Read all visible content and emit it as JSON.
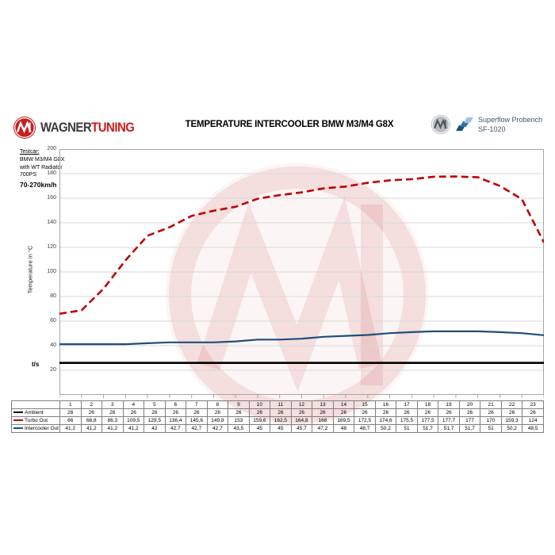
{
  "header": {
    "brand": {
      "wagner": "WAGNER",
      "tuning": "TUNING"
    },
    "title": "TEMPERATURE INTERCOOLER BMW M3/M4 G8X",
    "probench": {
      "line1": "Superflow Probench",
      "line2": "SF-1020"
    }
  },
  "annotation": {
    "testcar_label": "Testcar:",
    "lines": [
      "BMW M3/M4 G8X",
      "with WT Radiator",
      "700PS"
    ],
    "speed": "70-270km/h"
  },
  "chart_data": {
    "type": "line",
    "title": "TEMPERATURE INTERCOOLER BMW M3/M4 G8X",
    "xlabel": "t/s",
    "ylabel": "Temperature in °C",
    "ylim": [
      0,
      200
    ],
    "ytick_step": 20,
    "grid": true,
    "legend_position": "table-left",
    "categories": [
      1,
      2,
      3,
      4,
      5,
      6,
      7,
      8,
      9,
      10,
      11,
      12,
      13,
      14,
      15,
      16,
      17,
      18,
      19,
      20,
      21,
      22,
      23
    ],
    "series": [
      {
        "name": "Ambient",
        "color": "#000000",
        "style": "solid",
        "values": [
          26,
          26,
          26,
          26,
          26,
          26,
          26,
          26,
          26,
          26,
          26,
          26,
          26,
          26,
          26,
          26,
          26,
          26,
          26,
          26,
          26,
          26,
          26
        ]
      },
      {
        "name": "Turbo Out",
        "color": "#c00000",
        "style": "dashed",
        "values": [
          66,
          68.8,
          86.3,
          109.5,
          129.5,
          136.4,
          145.6,
          149.8,
          153,
          159.6,
          162.5,
          164.8,
          168,
          169.5,
          172.5,
          174.6,
          175.5,
          177.5,
          177.7,
          177,
          170,
          159.3,
          124
        ]
      },
      {
        "name": "Intercooler Out",
        "color": "#1f4e79",
        "style": "solid",
        "values": [
          41.2,
          41.2,
          41.2,
          41.2,
          42,
          42.7,
          42.7,
          42.7,
          43.5,
          45,
          45,
          45.7,
          47.2,
          48,
          48.7,
          50.2,
          51,
          51.7,
          51.7,
          51.7,
          51,
          50.2,
          48.5
        ]
      }
    ]
  },
  "table": {
    "columns": [
      "1",
      "2",
      "3",
      "4",
      "5",
      "6",
      "7",
      "8",
      "9",
      "10",
      "11",
      "12",
      "13",
      "14",
      "15",
      "16",
      "17",
      "18",
      "19",
      "20",
      "21",
      "22",
      "23"
    ],
    "rows": [
      {
        "label": "Ambient",
        "swatch": "solid-black",
        "values": [
          "26",
          "26",
          "26",
          "26",
          "26",
          "26",
          "26",
          "26",
          "26",
          "26",
          "26",
          "26",
          "26",
          "26",
          "26",
          "26",
          "26",
          "26",
          "26",
          "26",
          "26",
          "26",
          "26"
        ]
      },
      {
        "label": "Turbo Out",
        "swatch": "dashed-red",
        "values": [
          "66",
          "68,8",
          "86,3",
          "109,5",
          "129,5",
          "136,4",
          "145,6",
          "149,8",
          "153",
          "159,6",
          "162,5",
          "164,8",
          "168",
          "169,5",
          "172,5",
          "174,6",
          "175,5",
          "177,5",
          "177,7",
          "177",
          "170",
          "159,3",
          "124"
        ]
      },
      {
        "label": "Intercooler Out",
        "swatch": "solid-blue",
        "values": [
          "41,2",
          "41,2",
          "41,2",
          "41,2",
          "42",
          "42,7",
          "42,7",
          "42,7",
          "43,5",
          "45",
          "45",
          "45,7",
          "47,2",
          "48",
          "48,7",
          "50,2",
          "51",
          "51,7",
          "51,7",
          "51,7",
          "51",
          "50,2",
          "48,5"
        ]
      }
    ]
  },
  "colors": {
    "accent_red": "#C00000",
    "line_blue": "#1F4E79",
    "line_black": "#000000",
    "grid": "#D9D9D9",
    "axis": "#A6A6A6",
    "table_border": "#808080",
    "probench_text": "#44546A",
    "watermark_red": "#B01818"
  }
}
